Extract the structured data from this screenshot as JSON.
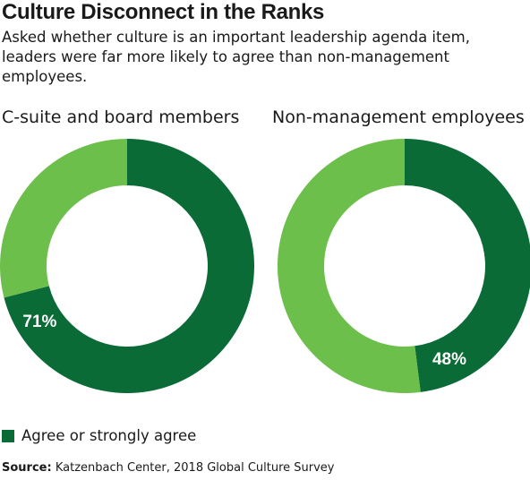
{
  "chart_data": [
    {
      "type": "pie",
      "variant": "donut",
      "title": "C-suite and board members",
      "categories": [
        "Agree or strongly agree",
        "Other"
      ],
      "values": [
        71,
        29
      ],
      "labels": [
        "71%",
        ""
      ],
      "colors": [
        "#0b6b37",
        "#6cbf4a"
      ]
    },
    {
      "type": "pie",
      "variant": "donut",
      "title": "Non-management employees",
      "categories": [
        "Agree or strongly agree",
        "Other"
      ],
      "values": [
        48,
        52
      ],
      "labels": [
        "48%",
        ""
      ],
      "colors": [
        "#0b6b37",
        "#6cbf4a"
      ]
    }
  ],
  "header": {
    "title": "Culture Disconnect in the Ranks",
    "subtitle": "Asked whether culture is an important leadership agenda item, leaders were far more likely to agree than non-management employees."
  },
  "legend": {
    "label": "Agree or strongly agree",
    "color": "#0b6b37",
    "position": "bottom-left"
  },
  "source": {
    "label": "Source:",
    "text": "Katzenbach Center, 2018 Global Culture Survey"
  }
}
